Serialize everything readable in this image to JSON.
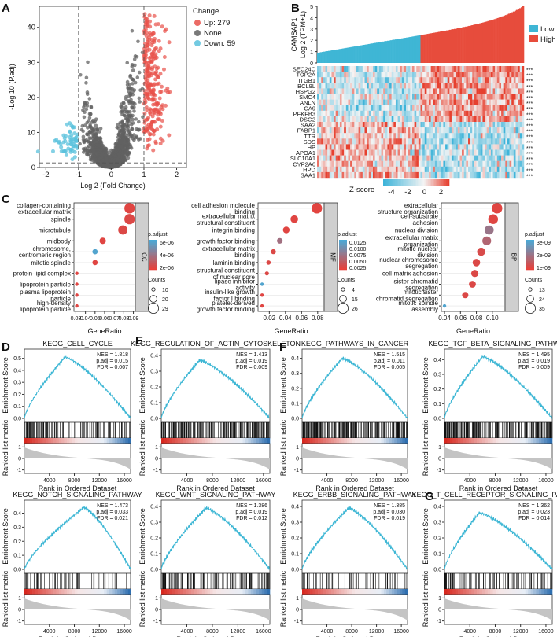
{
  "panel_letters": [
    "A",
    "B",
    "C",
    "D",
    "E",
    "F",
    "G"
  ],
  "colors": {
    "up": "#e8514a",
    "none": "#616161",
    "down": "#5bc1dc",
    "low": "#3fb6d5",
    "high": "#e74c3c"
  },
  "chart_data": [
    {
      "id": "A",
      "type": "scatter",
      "title": "Volcano plot",
      "xlabel": "Log 2 (Fold Change)",
      "ylabel": "-Log 10 (P.adj)",
      "xlim": [
        -2.2,
        2.3
      ],
      "ylim": [
        0,
        46
      ],
      "xticks": [
        "-2",
        "-1",
        "0",
        "1",
        "2"
      ],
      "yticks": [
        "0",
        "10",
        "20",
        "30",
        "40"
      ],
      "legend_title": "Change",
      "legend": [
        "Up: 279",
        "None",
        "Down: 59"
      ],
      "series": [
        {
          "name": "Up",
          "count": 279
        },
        {
          "name": "None"
        },
        {
          "name": "Down",
          "count": 59
        }
      ],
      "thresholds": {
        "fc": [
          -1,
          1
        ],
        "padj_line": 1.3
      }
    },
    {
      "id": "B",
      "type": "heatmap",
      "bar_ylabel_1": "CAMSAP1",
      "bar_ylabel_2": "Log 2 (TPM+1)",
      "bar_yticks": [
        "0",
        "1",
        "2",
        "3",
        "4",
        "5"
      ],
      "groups": [
        "Low",
        "High"
      ],
      "genes": [
        "SEC24C",
        "TOP2A",
        "ITGB1",
        "BCL9L",
        "HSPG2",
        "SMC4",
        "ANLN",
        "CA9",
        "PFKFB3",
        "DSG2",
        "SAA2",
        "FABP1",
        "TTR",
        "SDS",
        "HP",
        "APOA1",
        "SLC10A1",
        "CYP2A6",
        "HPD",
        "SAA1"
      ],
      "significance": "***",
      "colorbar_title": "Z-score",
      "colorbar_ticks": [
        "-4",
        "-2",
        "0",
        "2"
      ]
    },
    {
      "id": "C-CC",
      "type": "scatter",
      "strip": "CC",
      "xlabel": "GeneRatio",
      "xticks": [
        "0.03",
        "0.04",
        "0.05",
        "0.06",
        "0.07",
        "0.08",
        "0.09"
      ],
      "xlim": [
        0.028,
        0.092
      ],
      "terms": [
        "collagen-containing extracellular matrix",
        "spindle",
        "microtubule",
        "midbody",
        "chromosome, centromeric region",
        "mitotic spindle",
        "protein-lipid complex",
        "lipoprotein particle",
        "plasma lipoprotein particle",
        "high-density lipoprotein particle"
      ],
      "gene_ratio": [
        0.086,
        0.086,
        0.079,
        0.058,
        0.05,
        0.05,
        0.031,
        0.031,
        0.031,
        0.031
      ],
      "counts": [
        29,
        29,
        26,
        18,
        15,
        15,
        10,
        10,
        10,
        10
      ],
      "p_adjust_norm": [
        0.05,
        0.08,
        0.08,
        0.05,
        0.95,
        0.05,
        0.05,
        0.05,
        0.05,
        0.05
      ],
      "colorbar_title": "p.adjust",
      "colorbar_ticks": [
        "6e-06",
        "4e-06",
        "2e-06"
      ],
      "size_title": "Counts",
      "size_ticks": [
        "10",
        "20",
        "29"
      ]
    },
    {
      "id": "C-MF",
      "type": "scatter",
      "strip": "MF",
      "xlabel": "GeneRatio",
      "xticks": [
        "0.02",
        "0.04",
        "0.06",
        "0.08"
      ],
      "xlim": [
        0.006,
        0.088
      ],
      "terms": [
        "cell adhesion molecule binding",
        "extracellular matrix structural constituent",
        "integrin binding",
        "growth factor binding",
        "extracellular matrix binding",
        "laminin binding",
        "structural constituent of nuclear pore",
        "lipase inhibitor activity",
        "insulin-like growth factor I binding",
        "platelet-derived growth factor binding"
      ],
      "gene_ratio": [
        0.079,
        0.051,
        0.041,
        0.033,
        0.025,
        0.019,
        0.017,
        0.011,
        0.011,
        0.011
      ],
      "counts": [
        26,
        17,
        14,
        11,
        9,
        7,
        6,
        4,
        4,
        4
      ],
      "p_adjust_norm": [
        0.04,
        0.05,
        0.05,
        0.45,
        0.08,
        0.08,
        0.08,
        0.95,
        0.05,
        0.05
      ],
      "colorbar_title": "p.adjust",
      "colorbar_ticks": [
        "0.0125",
        "0.0100",
        "0.0075",
        "0.0050",
        "0.0025"
      ],
      "size_title": "Counts",
      "size_ticks": [
        "4",
        "15",
        "26"
      ]
    },
    {
      "id": "C-BP",
      "type": "scatter",
      "strip": "BP",
      "xlabel": "GeneRatio",
      "xticks": [
        "0.04",
        "0.06",
        "0.08",
        "0.10"
      ],
      "xlim": [
        0.036,
        0.116
      ],
      "terms": [
        "extracellular structure organization",
        "cell-substrate adhesion",
        "nuclear division",
        "extracellular matrix organization",
        "mitotic nuclear division",
        "nuclear chromosome segregation",
        "cell-matrix adhesion",
        "sister chromatid segregation",
        "mitotic sister chromatid segregation",
        "mitotic spindle assembly"
      ],
      "gene_ratio": [
        0.106,
        0.101,
        0.096,
        0.093,
        0.086,
        0.08,
        0.078,
        0.075,
        0.066,
        0.04
      ],
      "counts": [
        35,
        33,
        31,
        30,
        28,
        26,
        25,
        24,
        22,
        13
      ],
      "p_adjust_norm": [
        0.05,
        0.06,
        0.5,
        0.35,
        0.1,
        0.08,
        0.08,
        0.08,
        0.08,
        0.95
      ],
      "colorbar_title": "p.adjust",
      "colorbar_ticks": [
        "3e-09",
        "2e-09",
        "1e-09"
      ],
      "size_title": "Counts",
      "size_ticks": [
        "13",
        "24",
        "35"
      ]
    },
    {
      "id": "GSEA",
      "type": "line",
      "ylabel_top": "Enrichment Score",
      "ylabel_bottom": "Ranked list metric",
      "xlabel": "Rank in Ordered Dataset",
      "xticks": [
        "4000",
        "8000",
        "12000",
        "16000"
      ],
      "xlim": [
        0,
        17000
      ],
      "panels": [
        {
          "letter": "D",
          "title": "KEGG_CELL_CYCLE",
          "nes": "NES = 1.818",
          "padj": "p.adj = 0.015",
          "fdr": "FDR = 0.007",
          "yticks": [
            "0.0",
            "0.1",
            "0.2",
            "0.3",
            "0.4",
            "0.5"
          ],
          "ymax": 0.55,
          "peak": 0.51,
          "peak_x": 6500
        },
        {
          "letter": "E",
          "title": "KEGG_REGULATION_OF_ACTIN_CYTOSKELETON",
          "nes": "NES = 1.413",
          "padj": "p.adj = 0.019",
          "fdr": "FDR = 0.009",
          "yticks": [
            "0.0",
            "0.1",
            "0.2",
            "0.3",
            "0.4"
          ],
          "ymax": 0.42,
          "peak": 0.37,
          "peak_x": 6000
        },
        {
          "letter": "F",
          "title": "KEGG_PATHWAYS_IN_CANCER",
          "nes": "NES = 1.515",
          "padj": "p.adj = 0.011",
          "fdr": "FDR = 0.005",
          "yticks": [
            "0.0",
            "0.1",
            "0.2",
            "0.3",
            "0.4"
          ],
          "ymax": 0.44,
          "peak": 0.4,
          "peak_x": 6500
        },
        {
          "letter": "",
          "title": "KEGG_TGF_BETA_SIGNALING_PATHWAY",
          "nes": "NES = 1.495",
          "padj": "p.adj = 0.019",
          "fdr": "FDR = 0.009",
          "yticks": [
            "0.0",
            "0.1",
            "0.2",
            "0.3",
            "0.4"
          ],
          "ymax": 0.45,
          "peak": 0.42,
          "peak_x": 6000
        },
        {
          "letter": "",
          "title": "KEGG_NOTCH_SIGNALING_PATHWAY",
          "nes": "NES = 1.473",
          "padj": "p.adj = 0.033",
          "fdr": "FDR = 0.021",
          "yticks": [
            "0.0",
            "0.1",
            "0.2",
            "0.3",
            "0.4"
          ],
          "ymax": 0.47,
          "peak": 0.44,
          "peak_x": 9500
        },
        {
          "letter": "",
          "title": "KEGG_WNT_SIGNALING_PATHWAY",
          "nes": "NES = 1.386",
          "padj": "p.adj = 0.019",
          "fdr": "FDR = 0.012",
          "yticks": [
            "0.0",
            "0.1",
            "0.2",
            "0.3",
            "0.4"
          ],
          "ymax": 0.42,
          "peak": 0.39,
          "peak_x": 7000
        },
        {
          "letter": "",
          "title": "KEGG_ERBB_SIGNALING_PATHWAY",
          "nes": "NES = 1.385",
          "padj": "p.adj = 0.030",
          "fdr": "FDR = 0.019",
          "yticks": [
            "0.0",
            "0.1",
            "0.2",
            "0.3",
            "0.4"
          ],
          "ymax": 0.42,
          "peak": 0.39,
          "peak_x": 7500
        },
        {
          "letter": "G",
          "title": "KEGG_T_CELL_RECEPTOR_SIGNALING_PATHWAY",
          "nes": "NES = 1.362",
          "padj": "p.adj = 0.023",
          "fdr": "FDR = 0.014",
          "yticks": [
            "0.0",
            "0.1",
            "0.2",
            "0.3",
            "0.4"
          ],
          "ymax": 0.42,
          "peak": 0.36,
          "peak_x": 5500
        }
      ]
    }
  ]
}
